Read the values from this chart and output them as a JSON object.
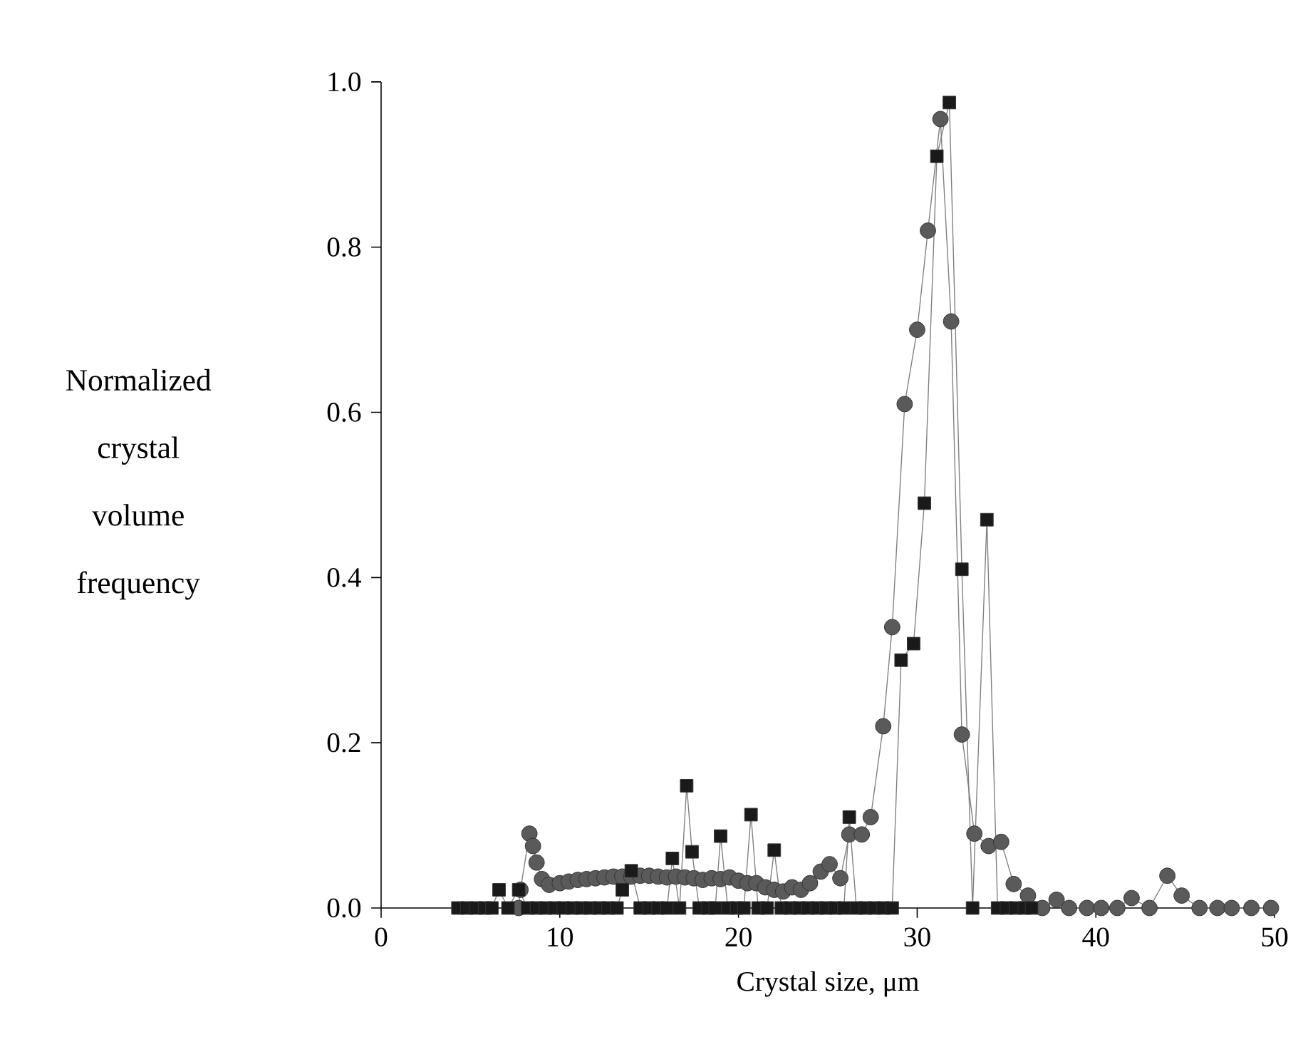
{
  "chart_data": {
    "type": "line",
    "xlabel": "Crystal size, μm",
    "ylabel": "Normalized crystal volume frequency",
    "xlim": [
      0,
      50
    ],
    "ylim": [
      0,
      1
    ],
    "xticks": [
      0,
      10,
      20,
      30,
      40,
      50
    ],
    "yticks": [
      {
        "value": 0,
        "label": "0.0"
      },
      {
        "value": 0.2,
        "label": "0.2"
      },
      {
        "value": 0.4,
        "label": "0.4"
      },
      {
        "value": 0.6,
        "label": "0.6"
      },
      {
        "value": 0.8,
        "label": "0.8"
      },
      {
        "value": 1,
        "label": "1.0"
      }
    ],
    "grid": false,
    "line_style": "solid",
    "series": [
      {
        "color": "#5a5a5a",
        "marker": "circle",
        "x": [
          7.7,
          7.8,
          8.3,
          8.5,
          8.7,
          9.0,
          9.4,
          10.0,
          10.5,
          11.0,
          11.5,
          12.0,
          12.5,
          13.0,
          13.5,
          14.0,
          14.5,
          15.0,
          15.5,
          16.0,
          16.5,
          17.0,
          17.5,
          18.0,
          18.5,
          19.0,
          19.5,
          20.0,
          20.5,
          21.0,
          21.5,
          22.0,
          22.5,
          23.0,
          23.5,
          24.0,
          24.6,
          25.1,
          25.7,
          26.2,
          26.9,
          27.4,
          28.1,
          28.6,
          29.3,
          30.0,
          30.6,
          31.3,
          31.9,
          32.5,
          33.2,
          34.0,
          34.7,
          35.4,
          36.2,
          37.0,
          37.8,
          38.5,
          39.5,
          40.3,
          41.2,
          42.0,
          43.0,
          44.0,
          44.8,
          45.8,
          46.8,
          47.6,
          48.7,
          49.8
        ],
        "values": [
          0.0,
          0.022,
          0.09,
          0.075,
          0.055,
          0.035,
          0.028,
          0.03,
          0.032,
          0.034,
          0.035,
          0.036,
          0.037,
          0.038,
          0.038,
          0.038,
          0.039,
          0.039,
          0.038,
          0.037,
          0.038,
          0.037,
          0.036,
          0.034,
          0.036,
          0.035,
          0.037,
          0.033,
          0.03,
          0.03,
          0.025,
          0.022,
          0.02,
          0.025,
          0.022,
          0.03,
          0.044,
          0.053,
          0.036,
          0.089,
          0.089,
          0.11,
          0.22,
          0.34,
          0.61,
          0.7,
          0.82,
          0.955,
          0.71,
          0.21,
          0.09,
          0.075,
          0.08,
          0.029,
          0.015,
          0.0,
          0.01,
          0.0,
          0.0,
          0.0,
          0.0,
          0.012,
          0.0,
          0.039,
          0.015,
          0.0,
          0.0,
          0.0,
          0.0,
          0.0
        ]
      },
      {
        "color": "#1a1a1a",
        "marker": "square",
        "x": [
          4.3,
          4.8,
          5.3,
          5.8,
          6.2,
          6.6,
          7.1,
          7.7,
          8.2,
          8.7,
          9.2,
          9.7,
          10.2,
          10.7,
          11.2,
          11.7,
          12.2,
          12.7,
          13.2,
          13.5,
          14.0,
          14.5,
          15.0,
          15.5,
          16.0,
          16.3,
          16.7,
          17.1,
          17.4,
          17.8,
          18.3,
          18.7,
          19.0,
          19.4,
          19.9,
          20.3,
          20.7,
          21.1,
          21.6,
          22.0,
          22.4,
          22.9,
          23.4,
          23.9,
          24.4,
          24.9,
          25.4,
          25.9,
          26.2,
          26.6,
          27.1,
          27.6,
          28.1,
          28.6,
          29.1,
          29.8,
          30.4,
          31.1,
          31.8,
          32.5,
          33.1,
          33.9,
          34.5,
          35.0,
          35.5,
          36.0,
          36.4
        ],
        "values": [
          0,
          0,
          0,
          0,
          0,
          0.022,
          0,
          0.022,
          0,
          0,
          0,
          0,
          0,
          0,
          0,
          0,
          0,
          0,
          0,
          0.022,
          0.045,
          0,
          0,
          0,
          0,
          0.06,
          0,
          0.148,
          0.068,
          0,
          0,
          0,
          0.087,
          0,
          0,
          0,
          0.113,
          0,
          0,
          0.07,
          0,
          0,
          0,
          0,
          0,
          0,
          0,
          0,
          0.11,
          0,
          0,
          0,
          0,
          0,
          0.3,
          0.32,
          0.49,
          0.91,
          0.975,
          0.41,
          0,
          0.47,
          0,
          0,
          0,
          0,
          0
        ]
      }
    ]
  }
}
